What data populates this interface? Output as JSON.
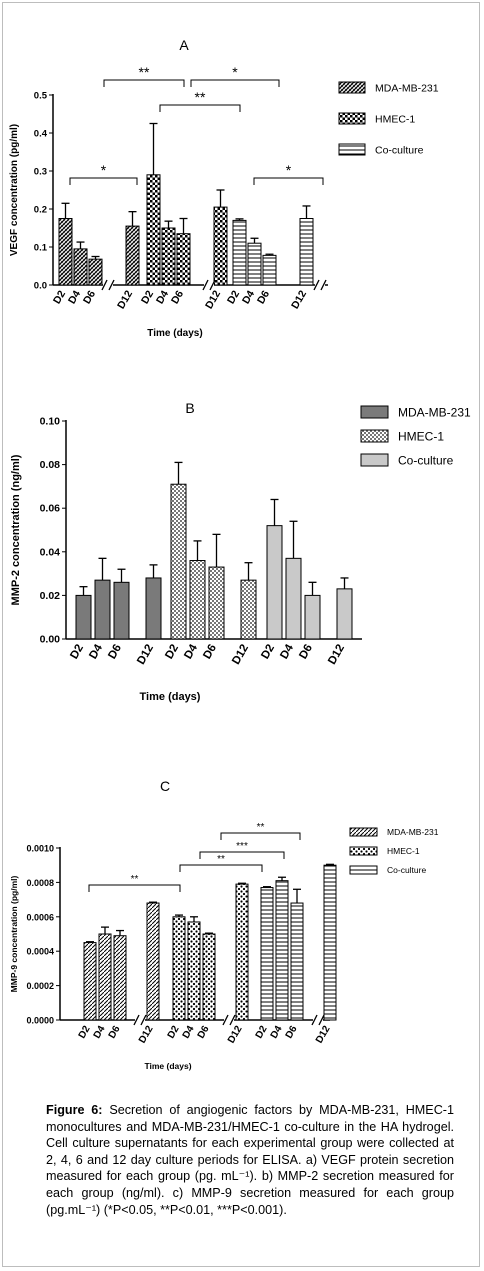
{
  "chart_data": [
    {
      "type": "bar",
      "panel_label": "A",
      "xlabel": "Time (days)",
      "ylabel": "VEGF concentration (pg/ml)",
      "ylim": [
        0,
        0.5
      ],
      "yticks": [
        "0.0",
        "0.1",
        "0.2",
        "0.3",
        "0.4",
        "0.5"
      ],
      "categories": [
        "D2",
        "D4",
        "D6",
        "D12"
      ],
      "series": [
        {
          "name": "MDA-MB-231",
          "values": [
            0.175,
            0.095,
            0.068,
            0.155
          ],
          "errors": [
            0.04,
            0.018,
            0.007,
            0.038
          ]
        },
        {
          "name": "HMEC-1",
          "values": [
            0.29,
            0.15,
            0.135,
            0.205
          ],
          "errors": [
            0.135,
            0.018,
            0.04,
            0.045
          ]
        },
        {
          "name": "Co-culture",
          "values": [
            0.17,
            0.11,
            0.078,
            0.175
          ],
          "errors": [
            0.004,
            0.013,
            0.003,
            0.033
          ]
        }
      ],
      "significance": [
        "*",
        "**",
        "*",
        "**",
        "*"
      ],
      "legend": "right",
      "grid": false
    },
    {
      "type": "bar",
      "panel_label": "B",
      "xlabel": "Time (days)",
      "ylabel": "MMP-2 concentration (ng/ml)",
      "ylim": [
        0,
        0.1
      ],
      "yticks": [
        "0.00",
        "0.02",
        "0.04",
        "0.06",
        "0.08",
        "0.10"
      ],
      "categories": [
        "D2",
        "D4",
        "D6",
        "D12"
      ],
      "series": [
        {
          "name": "MDA-MB-231",
          "values": [
            0.02,
            0.027,
            0.026,
            0.028
          ],
          "errors": [
            0.004,
            0.01,
            0.006,
            0.006
          ]
        },
        {
          "name": "HMEC-1",
          "values": [
            0.071,
            0.036,
            0.033,
            0.027
          ],
          "errors": [
            0.01,
            0.009,
            0.015,
            0.008
          ]
        },
        {
          "name": "Co-culture",
          "values": [
            0.052,
            0.037,
            0.02,
            0.023
          ],
          "errors": [
            0.012,
            0.017,
            0.006,
            0.005
          ]
        }
      ],
      "legend": "top-right",
      "grid": false
    },
    {
      "type": "bar",
      "panel_label": "C",
      "xlabel": "Time (days)",
      "ylabel": "MMP-9 concentration (pg/ml)",
      "ylim": [
        0,
        0.001
      ],
      "yticks": [
        "0.0000",
        "0.0002",
        "0.0004",
        "0.0006",
        "0.0008",
        "0.0010"
      ],
      "categories": [
        "D2",
        "D4",
        "D6",
        "D12"
      ],
      "series": [
        {
          "name": "MDA-MB-231",
          "values": [
            0.00045,
            0.0005,
            0.00049,
            0.00068
          ],
          "errors": [
            5e-06,
            4e-05,
            3e-05,
            5e-06
          ]
        },
        {
          "name": "HMEC-1",
          "values": [
            0.0006,
            0.00057,
            0.0005,
            0.00079
          ],
          "errors": [
            1e-05,
            3e-05,
            5e-06,
            5e-06
          ]
        },
        {
          "name": "Co-culture",
          "values": [
            0.00077,
            0.00081,
            0.00068,
            0.0009
          ],
          "errors": [
            5e-06,
            2e-05,
            8e-05,
            5e-06
          ]
        }
      ],
      "significance": [
        "**",
        "**",
        "***",
        "**"
      ],
      "legend": "right",
      "grid": false
    }
  ],
  "caption": {
    "label": "Figure 6:",
    "text": "Secretion of angiogenic factors by MDA-MB-231, HMEC-1 monocultures and MDA-MB-231/HMEC-1 co-culture in the HA hydrogel. Cell culture supernatants for each experimental group were collected at 2, 4, 6 and 12 day culture periods for ELISA. a) VEGF protein secretion measured for each group (pg. mL⁻¹). b) MMP-2 secretion measured for each group (ng/ml). c) MMP-9 secretion measured for each group (pg.mL⁻¹) (*P<0.05, **P<0.01, ***P<0.001)."
  }
}
